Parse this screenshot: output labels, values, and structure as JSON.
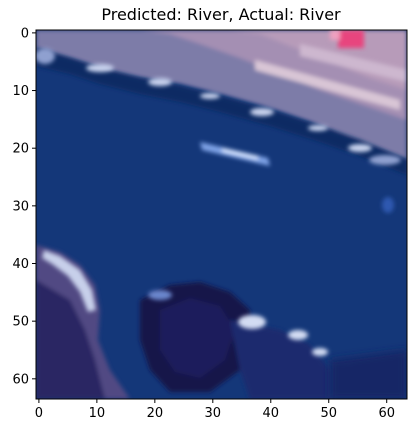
{
  "figure": {
    "title": "Predicted: River, Actual: River",
    "image_description_icon": "satellite-river-image",
    "x_ticks": [
      "0",
      "10",
      "20",
      "30",
      "40",
      "50",
      "60"
    ],
    "y_ticks": [
      "0",
      "10",
      "20",
      "30",
      "40",
      "50",
      "60"
    ],
    "x_tick_values": [
      0,
      10,
      20,
      30,
      40,
      50,
      60
    ],
    "y_tick_values": [
      0,
      10,
      20,
      30,
      40,
      50,
      60
    ],
    "x_range": [
      -0.5,
      63.5
    ],
    "y_range": [
      -0.5,
      63.5
    ],
    "colors": {
      "river": "#143779",
      "river_dark": "#0f2a63",
      "bank_light": "#a9b4d6",
      "bank_purple": "#7d7ba8",
      "land_pink": "#b79bb9",
      "highlight_pink": "#e8457e",
      "deep_navy": "#16164a"
    }
  }
}
